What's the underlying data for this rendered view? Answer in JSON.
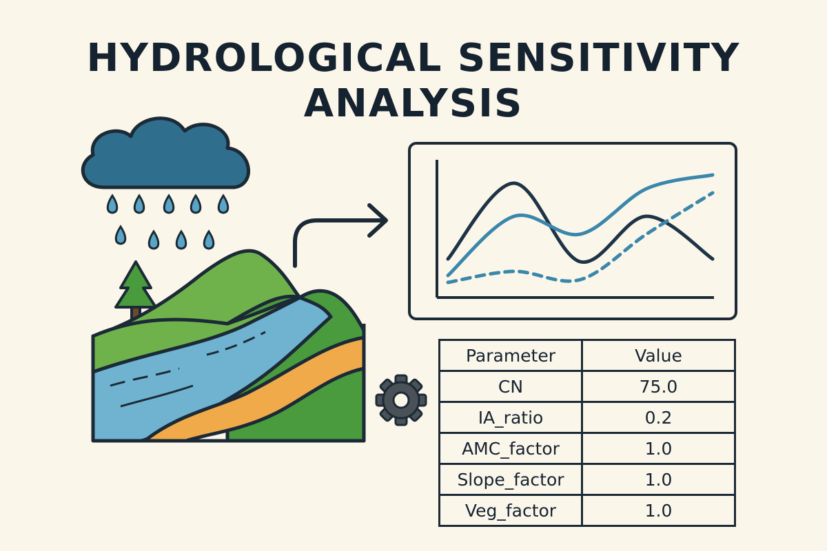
{
  "title": {
    "line1": "HYDROLOGICAL SENSITIVITY",
    "line2": "ANALYSIS"
  },
  "colors": {
    "background": "#fbf6ea",
    "outline": "#1b2a36",
    "cloud": "#2f6e8c",
    "rain": "#5aa5c5",
    "hill_light": "#6fb24c",
    "hill_dark": "#4a9a3e",
    "river": "#6fb3d0",
    "sand": "#f0aa4a",
    "series_dark": "#1e3346",
    "series_teal": "#3b87ab",
    "gear": "#4a5258"
  },
  "icons": [
    "cloud-icon",
    "raindrop-icon",
    "tree-icon",
    "landscape-icon",
    "arrow-icon",
    "gear-icon"
  ],
  "table": {
    "headers": [
      "Parameter",
      "Value"
    ],
    "rows": [
      [
        "CN",
        "75.0"
      ],
      [
        "IA_ratio",
        "0.2"
      ],
      [
        "AMC_factor",
        "1.0"
      ],
      [
        "Slope_factor",
        "1.0"
      ],
      [
        "Veg_factor",
        "1.0"
      ]
    ]
  },
  "chart_data": {
    "type": "line",
    "series": [
      {
        "values": [
          0.17,
          0.72,
          0.15,
          0.48,
          0.17
        ]
      },
      {
        "values": [
          0.05,
          0.48,
          0.35,
          0.68,
          0.78
        ]
      },
      {
        "values": [
          0.0,
          0.08,
          0.02,
          0.35,
          0.65
        ],
        "style": "dashed"
      }
    ],
    "grid": false,
    "legend": false
  }
}
